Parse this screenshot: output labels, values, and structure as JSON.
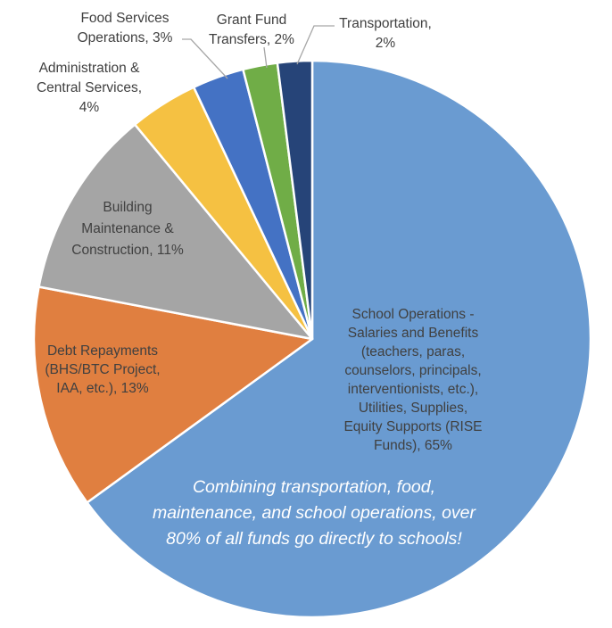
{
  "chart_data": {
    "type": "pie",
    "title": "",
    "slices": [
      {
        "name": "School Operations - Salaries and Benefits (teachers, paras, counselors, principals, interventionists, etc.), Utilities, Supplies, Equity Supports (RISE Funds)",
        "value": 65,
        "color": "#6A9BD1",
        "label_lines": [
          "School Operations -",
          "Salaries and Benefits",
          "(teachers, paras,",
          "counselors, principals,",
          "interventionists, etc.),",
          "Utilities, Supplies,",
          "Equity Supports (RISE",
          "Funds), 65%"
        ]
      },
      {
        "name": "Debt Repayments (BHS/BTC Project, IAA, etc.)",
        "value": 13,
        "color": "#E07F40",
        "label_lines": [
          "Debt Repayments",
          "(BHS/BTC Project,",
          "IAA, etc.), 13%"
        ]
      },
      {
        "name": "Building Maintenance & Construction",
        "value": 11,
        "color": "#A5A5A5",
        "label_lines": [
          "Building",
          "Maintenance &",
          "Construction, 11%"
        ]
      },
      {
        "name": "Administration & Central Services",
        "value": 4,
        "color": "#F5C142",
        "label_lines": [
          "Administration &",
          "Central Services,",
          "4%"
        ]
      },
      {
        "name": "Food Services Operations",
        "value": 3,
        "color": "#4472C4",
        "label_lines": [
          "Food Services",
          "Operations, 3%"
        ]
      },
      {
        "name": "Grant Fund Transfers",
        "value": 2,
        "color": "#70AD47",
        "label_lines": [
          "Grant Fund",
          "Transfers, 2%"
        ]
      },
      {
        "name": "Transportation",
        "value": 2,
        "color": "#264478",
        "label_lines": [
          "Transportation,",
          "2%"
        ]
      }
    ],
    "annotation_lines": [
      "Combining transportation, food,",
      "maintenance, and school operations, over",
      "80% of all funds go directly to schools!"
    ]
  }
}
